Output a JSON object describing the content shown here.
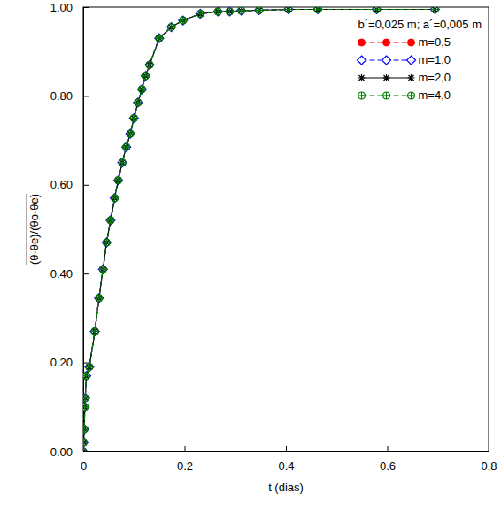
{
  "chart_data": {
    "type": "line",
    "x_label": "t (dias)",
    "y_label": "(θ-θe)/(θo-θe)",
    "annotation": "b´=0,025 m; a´=0,005 m",
    "x": [
      0,
      0.001,
      0.002,
      0.003,
      0.004,
      0.006,
      0.012,
      0.023,
      0.031,
      0.039,
      0.046,
      0.054,
      0.062,
      0.069,
      0.077,
      0.085,
      0.093,
      0.1,
      0.108,
      0.116,
      0.123,
      0.131,
      0.15,
      0.174,
      0.197,
      0.231,
      0.266,
      0.289,
      0.312,
      0.347,
      0.405,
      0.463,
      0.579,
      0.694
    ],
    "series": [
      {
        "name": "m=0,5",
        "color": "#ff0000",
        "marker": "circle",
        "line_style": "dashed",
        "values": [
          0,
          0.02,
          0.05,
          0.1,
          0.12,
          0.17,
          0.19,
          0.27,
          0.345,
          0.41,
          0.47,
          0.52,
          0.57,
          0.61,
          0.65,
          0.685,
          0.715,
          0.75,
          0.785,
          0.815,
          0.845,
          0.87,
          0.93,
          0.955,
          0.97,
          0.985,
          0.99,
          0.99,
          0.992,
          0.993,
          0.995,
          0.995,
          0.995,
          0.995
        ]
      },
      {
        "name": "m=1,0",
        "color": "#0000ff",
        "marker": "diamond",
        "line_style": "dashed",
        "values": [
          0,
          0.02,
          0.05,
          0.1,
          0.12,
          0.17,
          0.19,
          0.27,
          0.345,
          0.41,
          0.47,
          0.52,
          0.57,
          0.61,
          0.65,
          0.685,
          0.715,
          0.75,
          0.785,
          0.815,
          0.845,
          0.87,
          0.93,
          0.955,
          0.97,
          0.985,
          0.99,
          0.99,
          0.992,
          0.993,
          0.995,
          0.995,
          0.995,
          0.995
        ]
      },
      {
        "name": "m=2,0",
        "color": "#000000",
        "marker": "asterisk",
        "line_style": "solid",
        "values": [
          0,
          0.02,
          0.05,
          0.1,
          0.12,
          0.17,
          0.19,
          0.27,
          0.345,
          0.41,
          0.47,
          0.52,
          0.57,
          0.61,
          0.65,
          0.685,
          0.715,
          0.75,
          0.785,
          0.815,
          0.845,
          0.87,
          0.93,
          0.955,
          0.97,
          0.985,
          0.99,
          0.99,
          0.992,
          0.993,
          0.995,
          0.995,
          0.995,
          0.995
        ]
      },
      {
        "name": "m=4,0",
        "color": "#008000",
        "marker": "circle-plus",
        "line_style": "dashed",
        "values": [
          0,
          0.02,
          0.05,
          0.1,
          0.12,
          0.17,
          0.19,
          0.27,
          0.345,
          0.41,
          0.47,
          0.52,
          0.57,
          0.61,
          0.65,
          0.685,
          0.715,
          0.75,
          0.785,
          0.815,
          0.845,
          0.87,
          0.93,
          0.955,
          0.97,
          0.985,
          0.99,
          0.99,
          0.992,
          0.993,
          0.995,
          0.995,
          0.995,
          0.995
        ]
      }
    ],
    "xlim": [
      0,
      0.8
    ],
    "xticks": [
      0,
      0.2,
      0.4,
      0.6,
      0.8
    ],
    "ylim": [
      0,
      1
    ],
    "yticks": [
      {
        "value": 0,
        "label": "0.00"
      },
      {
        "value": 0.2,
        "label": "0.20"
      },
      {
        "value": 0.4,
        "label": "0.40"
      },
      {
        "value": 0.6,
        "label": "0.60"
      },
      {
        "value": 0.8,
        "label": "0.80"
      },
      {
        "value": 1,
        "label": "1.00"
      }
    ],
    "legend": "upper right",
    "grid": false
  }
}
